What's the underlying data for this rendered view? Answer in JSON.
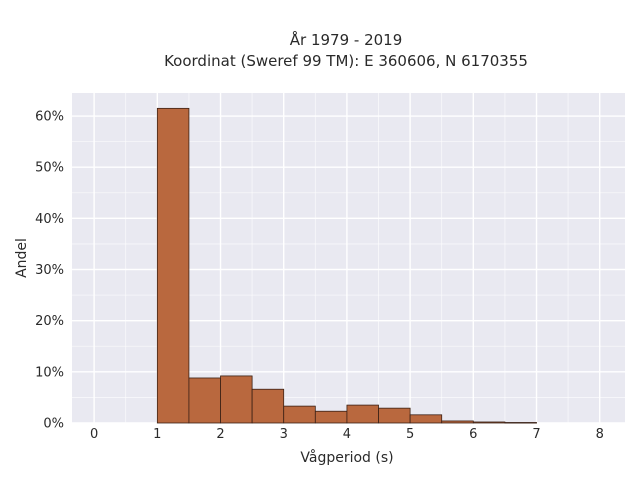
{
  "chart_data": {
    "type": "bar",
    "title_line1": "År 1979 - 2019",
    "title_line2": "Koordinat (Sweref 99 TM): E 360606, N 6170355",
    "xlabel": "Vågperiod (s)",
    "ylabel": "Andel",
    "xlim": [
      -0.35,
      8.4
    ],
    "ylim": [
      0,
      0.645
    ],
    "x_ticks": [
      0,
      1,
      2,
      3,
      4,
      5,
      6,
      7,
      8
    ],
    "x_tick_labels": [
      "0",
      "1",
      "2",
      "3",
      "4",
      "5",
      "6",
      "7",
      "8"
    ],
    "y_ticks": [
      0,
      0.1,
      0.2,
      0.3,
      0.4,
      0.5,
      0.6
    ],
    "y_tick_labels": [
      "0%",
      "10%",
      "20%",
      "30%",
      "40%",
      "50%",
      "60%"
    ],
    "bin_edges": [
      1.0,
      1.5,
      2.0,
      2.5,
      3.0,
      3.5,
      4.0,
      4.5,
      5.0,
      5.5,
      6.0,
      6.5,
      7.0
    ],
    "values": [
      0.615,
      0.088,
      0.092,
      0.066,
      0.033,
      0.023,
      0.035,
      0.029,
      0.016,
      0.004,
      0.002,
      0.001
    ],
    "grid": true,
    "colors": {
      "bar_fill": "#b9683e",
      "bar_edge": "#3a2015",
      "plot_bg": "#e9e9f1",
      "grid": "#ffffff",
      "text": "#2a2a2a"
    }
  }
}
